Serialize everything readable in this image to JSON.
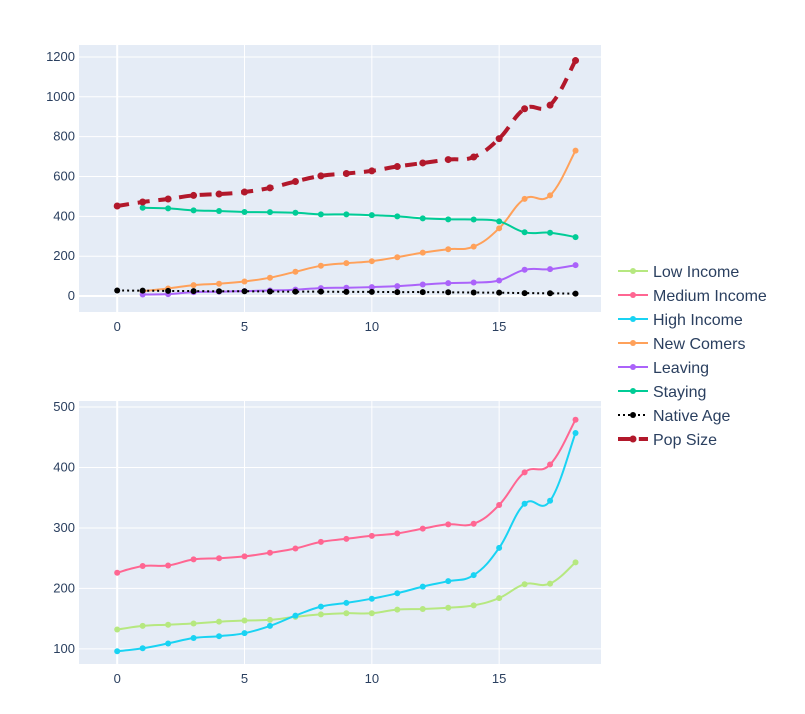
{
  "colors": {
    "plot_bg": "#e5ecf6",
    "grid": "#ffffff",
    "tick_text": "#2a3f5f"
  },
  "legend": {
    "placement": "right",
    "items": [
      {
        "label": "Low Income",
        "color": "#b6e880",
        "dash": "solid",
        "width": 2
      },
      {
        "label": "Medium Income",
        "color": "#ff6692",
        "dash": "solid",
        "width": 2
      },
      {
        "label": "High Income",
        "color": "#19d3f3",
        "dash": "solid",
        "width": 2
      },
      {
        "label": "New Comers",
        "color": "#ffa15a",
        "dash": "solid",
        "width": 2
      },
      {
        "label": "Leaving",
        "color": "#ab63fa",
        "dash": "solid",
        "width": 2
      },
      {
        "label": "Staying",
        "color": "#00cc96",
        "dash": "solid",
        "width": 2
      },
      {
        "label": "Native  Age",
        "color": "#000000",
        "dash": "dot",
        "width": 2
      },
      {
        "label": "Pop Size",
        "color": "#b2182b",
        "dash": "dash",
        "width": 4
      }
    ]
  },
  "chart_data": [
    {
      "type": "line",
      "title": "",
      "xlabel": "",
      "ylabel": "",
      "grid": true,
      "xlim": [
        -1.5,
        19
      ],
      "ylim": [
        -80,
        1260
      ],
      "xticks": [
        0,
        5,
        10,
        15
      ],
      "yticks": [
        0,
        200,
        400,
        600,
        800,
        1000,
        1200
      ],
      "series": [
        {
          "name": "New Comers",
          "color": "#ffa15a",
          "dash": "solid",
          "width": 2,
          "x": [
            1,
            2,
            3,
            4,
            5,
            6,
            7,
            8,
            9,
            10,
            11,
            12,
            13,
            14,
            15,
            16,
            17,
            18
          ],
          "y": [
            25,
            38,
            55,
            62,
            73,
            92,
            122,
            152,
            165,
            175,
            195,
            218,
            235,
            248,
            340,
            488,
            505,
            730
          ]
        },
        {
          "name": "Leaving",
          "color": "#ab63fa",
          "dash": "solid",
          "width": 2,
          "x": [
            1,
            2,
            3,
            4,
            5,
            6,
            7,
            8,
            9,
            10,
            11,
            12,
            13,
            14,
            15,
            16,
            17,
            18
          ],
          "y": [
            8,
            10,
            20,
            22,
            25,
            28,
            32,
            40,
            42,
            45,
            50,
            58,
            65,
            68,
            78,
            132,
            135,
            155
          ]
        },
        {
          "name": "Staying",
          "color": "#00cc96",
          "dash": "solid",
          "width": 2,
          "x": [
            1,
            2,
            3,
            4,
            5,
            6,
            7,
            8,
            9,
            10,
            11,
            12,
            13,
            14,
            15,
            16,
            17,
            18
          ],
          "y": [
            443,
            440,
            430,
            427,
            422,
            421,
            418,
            410,
            410,
            406,
            400,
            390,
            385,
            384,
            375,
            320,
            318,
            296
          ]
        },
        {
          "name": "Native  Age",
          "color": "#000000",
          "dash": "dot",
          "width": 2,
          "x": [
            0,
            1,
            2,
            3,
            4,
            5,
            6,
            7,
            8,
            9,
            10,
            11,
            12,
            13,
            14,
            15,
            16,
            17,
            18
          ],
          "y": [
            28,
            27,
            26,
            25,
            24,
            24,
            23,
            22,
            22,
            21,
            21,
            20,
            20,
            19,
            18,
            17,
            15,
            14,
            12
          ]
        },
        {
          "name": "Pop Size",
          "color": "#b2182b",
          "dash": "dash",
          "width": 4,
          "x": [
            0,
            1,
            2,
            3,
            4,
            5,
            6,
            7,
            8,
            9,
            10,
            11,
            12,
            13,
            14,
            15,
            16,
            17,
            18
          ],
          "y": [
            452,
            472,
            487,
            505,
            512,
            522,
            543,
            575,
            603,
            615,
            628,
            650,
            668,
            685,
            698,
            790,
            940,
            958,
            1182
          ]
        }
      ]
    },
    {
      "type": "line",
      "title": "",
      "xlabel": "",
      "ylabel": "",
      "grid": true,
      "xlim": [
        -1.5,
        19
      ],
      "ylim": [
        75,
        510
      ],
      "xticks": [
        0,
        5,
        10,
        15
      ],
      "yticks": [
        100,
        200,
        300,
        400,
        500
      ],
      "series": [
        {
          "name": "Low Income",
          "color": "#b6e880",
          "dash": "solid",
          "width": 2,
          "x": [
            0,
            1,
            2,
            3,
            4,
            5,
            6,
            7,
            8,
            9,
            10,
            11,
            12,
            13,
            14,
            15,
            16,
            17,
            18
          ],
          "y": [
            132,
            138,
            140,
            142,
            145,
            147,
            148,
            153,
            157,
            159,
            159,
            165,
            166,
            168,
            172,
            184,
            207,
            208,
            243
          ]
        },
        {
          "name": "Medium Income",
          "color": "#ff6692",
          "dash": "solid",
          "width": 2,
          "x": [
            0,
            1,
            2,
            3,
            4,
            5,
            6,
            7,
            8,
            9,
            10,
            11,
            12,
            13,
            14,
            15,
            16,
            17,
            18
          ],
          "y": [
            226,
            237,
            238,
            248,
            250,
            253,
            259,
            266,
            277,
            282,
            287,
            291,
            299,
            306,
            307,
            338,
            392,
            405,
            479
          ]
        },
        {
          "name": "High Income",
          "color": "#19d3f3",
          "dash": "solid",
          "width": 2,
          "x": [
            0,
            1,
            2,
            3,
            4,
            5,
            6,
            7,
            8,
            9,
            10,
            11,
            12,
            13,
            14,
            15,
            16,
            17,
            18
          ],
          "y": [
            96,
            101,
            109,
            118,
            121,
            126,
            138,
            155,
            170,
            176,
            183,
            192,
            203,
            212,
            222,
            267,
            340,
            345,
            457
          ]
        }
      ]
    }
  ]
}
